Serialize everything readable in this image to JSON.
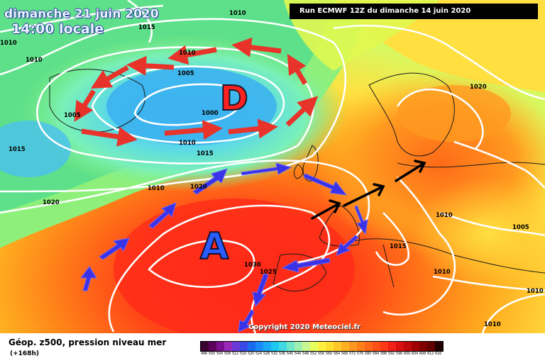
{
  "header": {
    "date": "dimanche 21 juin 2020",
    "time": "14:00 locale",
    "run": "Run ECMWF 12Z du dimanche 14 juin 2020"
  },
  "footer": {
    "legend_title": "Géop. z500, pression niveau mer",
    "legend_sub": "(+168h)",
    "copyright": "Copyright 2020 Meteociel.fr"
  },
  "pressure_systems": {
    "low": "D",
    "high": "A"
  },
  "colors": {
    "low_text": "#ff2020",
    "high_text": "#2a5cff",
    "flow_low_arrows": "#e8332a",
    "flow_high_arrows": "#3a32e6",
    "flow_europe_arrows": "#000000",
    "isobars": "#ffffff"
  },
  "isobar_labels": [
    "1010",
    "1015",
    "1010",
    "1010",
    "1010",
    "1005",
    "1000",
    "1005",
    "1015",
    "1010",
    "1015",
    "1020",
    "1010",
    "1020",
    "1010",
    "1015",
    "1005",
    "1010",
    "1010",
    "1010",
    "1030",
    "1025",
    "1020"
  ],
  "legend_scale": {
    "values": [
      "496",
      "500",
      "504",
      "508",
      "512",
      "516",
      "520",
      "524",
      "528",
      "532",
      "536",
      "540",
      "544",
      "548",
      "552",
      "556",
      "560",
      "564",
      "568",
      "572",
      "576",
      "580",
      "584",
      "588",
      "592",
      "596",
      "600",
      "604",
      "608",
      "612",
      "616"
    ],
    "colors": [
      "#3a0030",
      "#5a0058",
      "#7a1090",
      "#9a2ab8",
      "#6a3ad8",
      "#3a4ae8",
      "#1a6af0",
      "#1a8af8",
      "#1aaaf8",
      "#1ac8f0",
      "#40d8e0",
      "#70e8c8",
      "#9ef0b0",
      "#c8f890",
      "#e8ff60",
      "#fff040",
      "#ffe030",
      "#ffc828",
      "#ffb020",
      "#ff9820",
      "#ff8018",
      "#ff6818",
      "#ff5018",
      "#ff3818",
      "#f02018",
      "#d81010",
      "#c00808",
      "#a00000",
      "#800000",
      "#600000",
      "#200000"
    ]
  }
}
